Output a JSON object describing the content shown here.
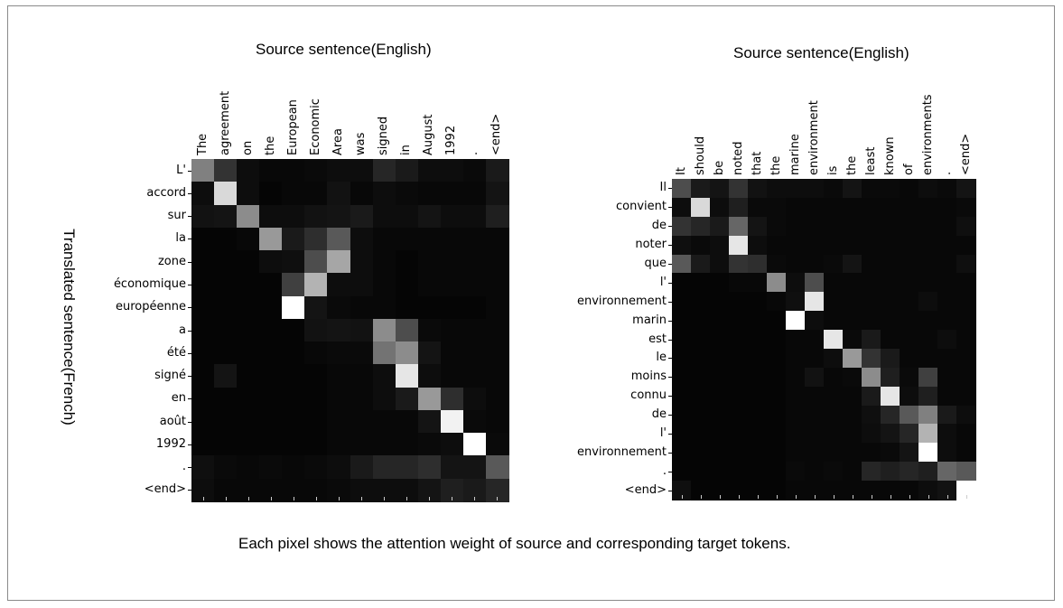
{
  "caption": "Each pixel shows the attention weight of source and corresponding target tokens.",
  "ylabel": "Translated sentence(French)",
  "chart_data": [
    {
      "type": "heatmap",
      "title": "Source sentence(English)",
      "ylabel": "Translated sentence(French)",
      "colormap": "gray",
      "x": [
        "The",
        "agreement",
        "on",
        "the",
        "European",
        "Economic",
        "Area",
        "was",
        "signed",
        "in",
        "August",
        "1992",
        ".",
        "<end>"
      ],
      "y": [
        "L'",
        "accord",
        "sur",
        "la",
        "zone",
        "économique",
        "européenne",
        "a",
        "été",
        "signé",
        "en",
        "août",
        "1992",
        ".",
        "<end>"
      ],
      "values": [
        [
          0.5,
          0.2,
          0.05,
          0.03,
          0.03,
          0.04,
          0.05,
          0.05,
          0.15,
          0.1,
          0.05,
          0.05,
          0.04,
          0.1
        ],
        [
          0.05,
          0.85,
          0.05,
          0.02,
          0.03,
          0.03,
          0.07,
          0.03,
          0.05,
          0.04,
          0.03,
          0.03,
          0.03,
          0.08
        ],
        [
          0.07,
          0.08,
          0.55,
          0.05,
          0.05,
          0.07,
          0.08,
          0.1,
          0.05,
          0.05,
          0.08,
          0.05,
          0.05,
          0.12
        ],
        [
          0.02,
          0.02,
          0.03,
          0.6,
          0.1,
          0.18,
          0.35,
          0.05,
          0.03,
          0.03,
          0.03,
          0.03,
          0.03,
          0.03
        ],
        [
          0.02,
          0.02,
          0.02,
          0.05,
          0.06,
          0.3,
          0.65,
          0.05,
          0.03,
          0.02,
          0.03,
          0.03,
          0.03,
          0.03
        ],
        [
          0.02,
          0.02,
          0.02,
          0.02,
          0.25,
          0.7,
          0.05,
          0.05,
          0.03,
          0.02,
          0.03,
          0.03,
          0.03,
          0.03
        ],
        [
          0.02,
          0.02,
          0.02,
          0.02,
          1.0,
          0.08,
          0.04,
          0.03,
          0.03,
          0.02,
          0.02,
          0.02,
          0.02,
          0.03
        ],
        [
          0.02,
          0.02,
          0.02,
          0.02,
          0.02,
          0.07,
          0.08,
          0.07,
          0.55,
          0.3,
          0.04,
          0.03,
          0.03,
          0.03
        ],
        [
          0.02,
          0.02,
          0.02,
          0.02,
          0.02,
          0.03,
          0.04,
          0.04,
          0.45,
          0.55,
          0.08,
          0.03,
          0.03,
          0.03
        ],
        [
          0.02,
          0.08,
          0.02,
          0.02,
          0.02,
          0.02,
          0.03,
          0.03,
          0.05,
          0.9,
          0.05,
          0.03,
          0.03,
          0.03
        ],
        [
          0.02,
          0.02,
          0.02,
          0.02,
          0.02,
          0.02,
          0.03,
          0.03,
          0.05,
          0.1,
          0.6,
          0.18,
          0.05,
          0.03
        ],
        [
          0.02,
          0.02,
          0.02,
          0.02,
          0.02,
          0.02,
          0.03,
          0.03,
          0.03,
          0.03,
          0.08,
          0.95,
          0.04,
          0.03
        ],
        [
          0.02,
          0.02,
          0.02,
          0.02,
          0.02,
          0.02,
          0.03,
          0.03,
          0.03,
          0.03,
          0.04,
          0.05,
          1.0,
          0.04
        ],
        [
          0.06,
          0.04,
          0.03,
          0.04,
          0.03,
          0.04,
          0.05,
          0.1,
          0.15,
          0.15,
          0.18,
          0.08,
          0.08,
          0.35
        ],
        [
          0.05,
          0.03,
          0.03,
          0.03,
          0.03,
          0.03,
          0.04,
          0.05,
          0.05,
          0.05,
          0.08,
          0.12,
          0.1,
          0.15
        ]
      ]
    },
    {
      "type": "heatmap",
      "title": "Source sentence(English)",
      "colormap": "gray",
      "x": [
        "It",
        "should",
        "be",
        "noted",
        "that",
        "the",
        "marine",
        "environment",
        "is",
        "the",
        "least",
        "known",
        "of",
        "environments",
        ".",
        "<end>"
      ],
      "y": [
        "Il",
        "convient",
        "de",
        "noter",
        "que",
        "l'",
        "environnement",
        "marin",
        "est",
        "le",
        "moins",
        "connu",
        "de",
        "l'",
        "environnement",
        ".",
        "<end>"
      ],
      "values": [
        [
          0.3,
          0.1,
          0.08,
          0.2,
          0.07,
          0.05,
          0.05,
          0.05,
          0.04,
          0.08,
          0.04,
          0.04,
          0.03,
          0.05,
          0.04,
          0.08
        ],
        [
          0.05,
          0.85,
          0.05,
          0.12,
          0.04,
          0.04,
          0.03,
          0.03,
          0.03,
          0.03,
          0.03,
          0.03,
          0.03,
          0.03,
          0.03,
          0.04
        ],
        [
          0.2,
          0.15,
          0.1,
          0.4,
          0.08,
          0.04,
          0.03,
          0.03,
          0.03,
          0.03,
          0.03,
          0.03,
          0.03,
          0.03,
          0.03,
          0.06
        ],
        [
          0.06,
          0.04,
          0.05,
          0.9,
          0.05,
          0.03,
          0.03,
          0.03,
          0.03,
          0.03,
          0.03,
          0.03,
          0.03,
          0.03,
          0.03,
          0.03
        ],
        [
          0.35,
          0.1,
          0.05,
          0.2,
          0.18,
          0.04,
          0.03,
          0.03,
          0.04,
          0.08,
          0.03,
          0.03,
          0.03,
          0.03,
          0.03,
          0.06
        ],
        [
          0.02,
          0.02,
          0.02,
          0.03,
          0.03,
          0.55,
          0.05,
          0.3,
          0.03,
          0.03,
          0.03,
          0.03,
          0.03,
          0.03,
          0.03,
          0.03
        ],
        [
          0.02,
          0.02,
          0.02,
          0.02,
          0.02,
          0.03,
          0.06,
          0.9,
          0.03,
          0.03,
          0.03,
          0.03,
          0.03,
          0.05,
          0.03,
          0.03
        ],
        [
          0.02,
          0.02,
          0.02,
          0.02,
          0.02,
          0.02,
          1.0,
          0.05,
          0.03,
          0.03,
          0.03,
          0.03,
          0.03,
          0.03,
          0.03,
          0.03
        ],
        [
          0.02,
          0.02,
          0.02,
          0.02,
          0.02,
          0.02,
          0.03,
          0.03,
          0.9,
          0.04,
          0.1,
          0.03,
          0.03,
          0.03,
          0.05,
          0.03
        ],
        [
          0.02,
          0.02,
          0.02,
          0.02,
          0.02,
          0.02,
          0.03,
          0.03,
          0.05,
          0.6,
          0.2,
          0.1,
          0.03,
          0.03,
          0.03,
          0.03
        ],
        [
          0.02,
          0.02,
          0.02,
          0.02,
          0.02,
          0.02,
          0.03,
          0.07,
          0.03,
          0.04,
          0.55,
          0.12,
          0.04,
          0.25,
          0.03,
          0.03
        ],
        [
          0.02,
          0.02,
          0.02,
          0.02,
          0.02,
          0.02,
          0.03,
          0.03,
          0.03,
          0.03,
          0.1,
          0.9,
          0.05,
          0.12,
          0.03,
          0.03
        ],
        [
          0.02,
          0.02,
          0.02,
          0.02,
          0.02,
          0.02,
          0.03,
          0.03,
          0.03,
          0.03,
          0.06,
          0.15,
          0.35,
          0.5,
          0.1,
          0.05
        ],
        [
          0.02,
          0.02,
          0.02,
          0.02,
          0.02,
          0.02,
          0.03,
          0.03,
          0.03,
          0.03,
          0.05,
          0.08,
          0.15,
          0.7,
          0.05,
          0.03
        ],
        [
          0.02,
          0.02,
          0.02,
          0.02,
          0.02,
          0.02,
          0.03,
          0.03,
          0.03,
          0.03,
          0.03,
          0.04,
          0.08,
          1.0,
          0.05,
          0.03
        ],
        [
          0.02,
          0.02,
          0.02,
          0.02,
          0.02,
          0.02,
          0.04,
          0.03,
          0.04,
          0.03,
          0.15,
          0.12,
          0.15,
          0.12,
          0.4,
          0.35
        ],
        [
          0.06,
          0.02,
          0.02,
          0.02,
          0.02,
          0.02,
          0.03,
          0.03,
          0.03,
          0.03,
          0.03,
          0.03,
          0.03,
          0.05,
          0.07,
          1.0
        ]
      ]
    }
  ]
}
